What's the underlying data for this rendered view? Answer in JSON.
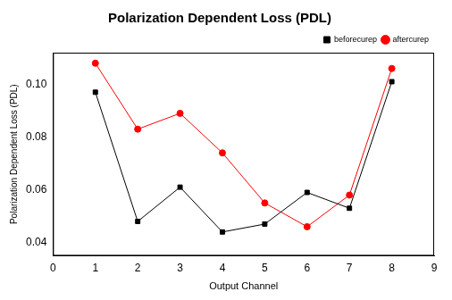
{
  "chart_data": {
    "type": "line",
    "title": "Polarization Dependent Loss (PDL)",
    "x_label": "Output Channel",
    "y_label": "Polarization Dependent Loss (PDL)",
    "x": [
      1,
      2,
      3,
      4,
      5,
      6,
      7,
      8
    ],
    "series": [
      {
        "name": "beforecurep",
        "color": "#000000",
        "marker": "square",
        "values": [
          0.097,
          0.048,
          0.061,
          0.044,
          0.047,
          0.059,
          0.053,
          0.101
        ]
      },
      {
        "name": "aftercurep",
        "color": "#ff0000",
        "marker": "circle",
        "values": [
          0.108,
          0.083,
          0.089,
          0.074,
          0.055,
          0.046,
          0.058,
          0.106
        ]
      }
    ],
    "xlim": [
      0,
      9
    ],
    "xticks": [
      0,
      1,
      2,
      3,
      4,
      5,
      6,
      7,
      8,
      9
    ],
    "ylim": [
      0.035,
      0.112
    ],
    "yticks": [
      0.04,
      0.06,
      0.08,
      {
        "value": 0.1,
        "label": "0.10"
      }
    ],
    "grid": false,
    "legend": "top-right"
  }
}
